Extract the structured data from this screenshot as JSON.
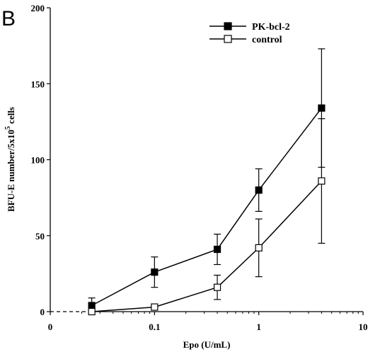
{
  "panel_label": "B",
  "chart_data": {
    "type": "line",
    "xlabel": "Epo (U/mL)",
    "ylabel_main": "BFU-E number/5x10",
    "ylabel_sup": "5",
    "ylabel_tail": " cells",
    "xscale": "log",
    "xlim": [
      0.01,
      10
    ],
    "ylim": [
      0,
      200
    ],
    "x_ticks": [
      {
        "value": 0.01,
        "label": "0"
      },
      {
        "value": 0.1,
        "label": "0.1"
      },
      {
        "value": 1,
        "label": "1"
      },
      {
        "value": 10,
        "label": "10"
      }
    ],
    "y_ticks": [
      {
        "value": 0,
        "label": "0"
      },
      {
        "value": 50,
        "label": "50"
      },
      {
        "value": 100,
        "label": "100"
      },
      {
        "value": 150,
        "label": "150"
      },
      {
        "value": 200,
        "label": "200"
      }
    ],
    "baseline_dashed_to_x": 0.025,
    "legend_position": "top-right",
    "series": [
      {
        "name": "PK-bcl-2",
        "marker": "filled-square",
        "x": [
          0.025,
          0.1,
          0.4,
          1,
          4
        ],
        "y": [
          4,
          26,
          41,
          80,
          134
        ],
        "err": [
          5,
          10,
          10,
          14,
          39
        ]
      },
      {
        "name": "control",
        "marker": "open-square",
        "x": [
          0.025,
          0.1,
          0.4,
          1,
          4
        ],
        "y": [
          0,
          3,
          16,
          42,
          86
        ],
        "err": [
          0,
          0,
          8,
          19,
          41
        ]
      }
    ]
  }
}
